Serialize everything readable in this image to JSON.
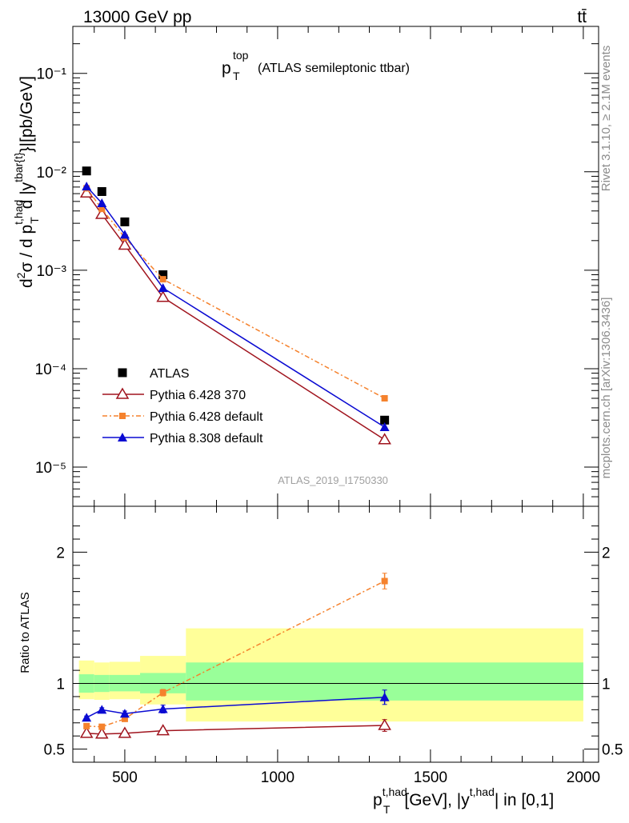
{
  "header": {
    "energy_label": "13000 GeV pp",
    "process_label": "tt̄",
    "plot_title_main": "p",
    "plot_title_sup": "top",
    "plot_title_sub": "T",
    "plot_title_rest": "(ATLAS semileptonic ttbar)",
    "analysis_id": "ATLAS_2019_I1750330",
    "side_rivet": "Rivet 3.1.10, ≥ 2.1M events",
    "side_mcplots": "mcplots.cern.ch [arXiv:1306.3436]"
  },
  "colors": {
    "atlas": "#000000",
    "p6_370": "#a0141e",
    "p6_default": "#f5822d",
    "p8_default": "#0a0ad2",
    "band_yellow": "#ffff99",
    "band_green": "#99ff99"
  },
  "chart_data": [
    {
      "type": "line",
      "panel": "main",
      "ylabel": "d²σ / d p_T^{t,had} d |y^{tbar{t}}|[pb/GeV]",
      "yscale": "log",
      "ylim": [
        4e-06,
        0.3
      ],
      "xlim": [
        330,
        2050
      ],
      "y_tick_labels": [
        "10⁻⁵",
        "10⁻⁴",
        "10⁻³",
        "10⁻²",
        "10⁻¹"
      ],
      "legend_position": "lower-left",
      "series": [
        {
          "name": "ATLAS",
          "marker": "square",
          "x": [
            375,
            425,
            500,
            625,
            1350
          ],
          "y": [
            0.0102,
            0.0063,
            0.0031,
            0.0009,
            3e-05
          ]
        },
        {
          "name": "Pythia 6.428 370",
          "marker": "open-triangle",
          "x": [
            375,
            425,
            500,
            625,
            1350
          ],
          "y": [
            0.0061,
            0.0037,
            0.0018,
            0.00053,
            1.9e-05
          ]
        },
        {
          "name": "Pythia 6.428 default",
          "marker": "small-square",
          "x": [
            375,
            425,
            500,
            625,
            1350
          ],
          "y": [
            0.0068,
            0.0042,
            0.00215,
            0.00081,
            5e-05
          ]
        },
        {
          "name": "Pythia 8.308 default",
          "marker": "filled-triangle",
          "x": [
            375,
            425,
            500,
            625,
            1350
          ],
          "y": [
            0.0071,
            0.0048,
            0.0023,
            0.00066,
            2.55e-05
          ]
        }
      ]
    },
    {
      "type": "line",
      "panel": "ratio",
      "xlabel": "p_T^{t,had} [GeV], |y^{t,had}| in [0,1]",
      "ylabel": "Ratio to ATLAS",
      "ylim": [
        0.4,
        2.35
      ],
      "xlim": [
        330,
        2050
      ],
      "x_tick_labels": [
        "500",
        "1000",
        "1500",
        "2000"
      ],
      "y_tick_labels": [
        "0.5",
        "1",
        "2"
      ],
      "bands": {
        "bins": [
          [
            350,
            400
          ],
          [
            400,
            450
          ],
          [
            450,
            550
          ],
          [
            550,
            700
          ],
          [
            700,
            2000
          ]
        ],
        "green_lo": [
          0.93,
          0.935,
          0.94,
          0.925,
          0.87
        ],
        "green_hi": [
          1.07,
          1.065,
          1.065,
          1.08,
          1.16
        ],
        "yellow_lo": [
          0.88,
          0.875,
          0.88,
          0.84,
          0.71
        ],
        "yellow_hi": [
          1.175,
          1.16,
          1.165,
          1.21,
          1.42
        ]
      },
      "series": [
        {
          "name": "Pythia 6.428 370",
          "x": [
            375,
            425,
            500,
            625,
            1350
          ],
          "y": [
            0.62,
            0.615,
            0.62,
            0.64,
            0.68
          ],
          "err": [
            0.012,
            0.012,
            0.012,
            0.02,
            0.045
          ]
        },
        {
          "name": "Pythia 6.428 default",
          "x": [
            375,
            425,
            500,
            625,
            1350
          ],
          "y": [
            0.675,
            0.67,
            0.73,
            0.93,
            1.78
          ],
          "err": [
            0.01,
            0.012,
            0.015,
            0.025,
            0.06
          ]
        },
        {
          "name": "Pythia 8.308 default",
          "x": [
            375,
            425,
            500,
            625,
            1350
          ],
          "y": [
            0.74,
            0.8,
            0.77,
            0.805,
            0.895
          ],
          "err": [
            0.012,
            0.015,
            0.02,
            0.03,
            0.055
          ]
        }
      ]
    }
  ]
}
